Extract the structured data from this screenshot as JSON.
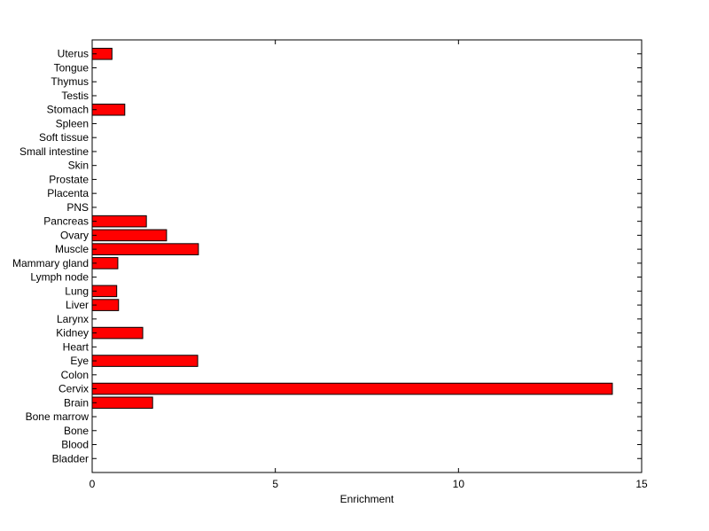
{
  "chart_data": {
    "type": "bar",
    "orientation": "horizontal",
    "categories": [
      "Bladder",
      "Blood",
      "Bone",
      "Bone marrow",
      "Brain",
      "Cervix",
      "Colon",
      "Eye",
      "Heart",
      "Kidney",
      "Larynx",
      "Liver",
      "Lung",
      "Lymph node",
      "Mammary gland",
      "Muscle",
      "Ovary",
      "Pancreas",
      "PNS",
      "Placenta",
      "Prostate",
      "Skin",
      "Small intestine",
      "Soft tissue",
      "Spleen",
      "Stomach",
      "Testis",
      "Thymus",
      "Tongue",
      "Uterus"
    ],
    "values": [
      0,
      0,
      0,
      0,
      1.65,
      14.2,
      0,
      2.88,
      0,
      1.38,
      0,
      0.72,
      0.67,
      0,
      0.7,
      2.9,
      2.03,
      1.48,
      0,
      0,
      0,
      0,
      0,
      0,
      0,
      0.89,
      0,
      0,
      0,
      0.54
    ],
    "xlim": [
      0,
      15
    ],
    "xticks": [
      0,
      5,
      10,
      15
    ],
    "xlabel": "Enrichment",
    "ylabel": "",
    "title": "",
    "grid": false,
    "colors": {
      "bar_fill": "#ff0000",
      "bar_stroke": "#000000",
      "axes": "#000000"
    }
  }
}
